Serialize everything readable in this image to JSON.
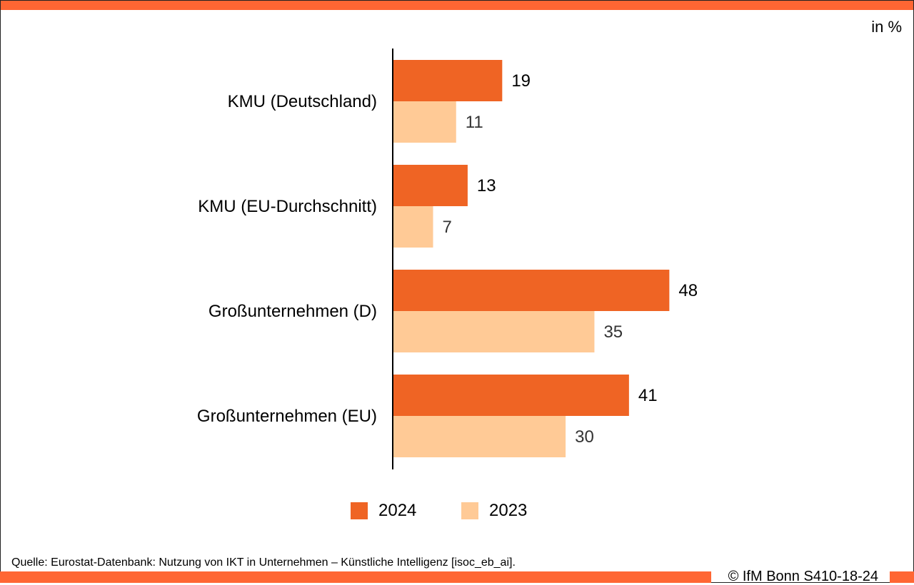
{
  "unit_label": "in %",
  "legend": [
    {
      "label": "2024",
      "color": "#ef6424"
    },
    {
      "label": "2023",
      "color": "#ffca96"
    }
  ],
  "source": "Quelle: Eurostat-Datenbank: Nutzung von IKT in Unternehmen – Künstliche Intelligenz [isoc_eb_ai].",
  "copyright": "© IfM Bonn S410-18-24",
  "colors": {
    "accent": "#ff6633",
    "series_2024": "#ef6424",
    "series_2023": "#ffca96"
  },
  "chart_data": {
    "type": "bar",
    "orientation": "horizontal",
    "categories": [
      "KMU (Deutschland)",
      "KMU (EU-Durchschnitt)",
      "Großunternehmen (D)",
      "Großunternehmen (EU)"
    ],
    "series": [
      {
        "name": "2024",
        "values": [
          19,
          13,
          48,
          41
        ],
        "color": "#ef6424"
      },
      {
        "name": "2023",
        "values": [
          11,
          7,
          35,
          30
        ],
        "color": "#ffca96"
      }
    ],
    "xlim": [
      0,
      50
    ],
    "grid": false,
    "legend_position": "bottom"
  }
}
